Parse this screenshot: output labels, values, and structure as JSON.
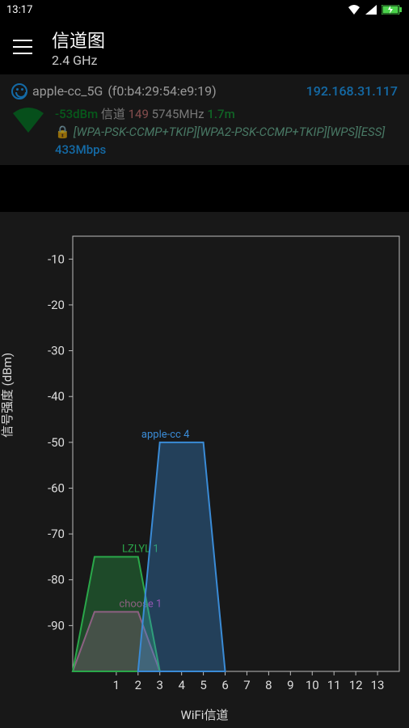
{
  "status": {
    "time": "13:17"
  },
  "appbar": {
    "title": "信道图",
    "subtitle": "2.4 GHz"
  },
  "info": {
    "ssid": "apple-cc_5G",
    "mac": "(f0:b4:29:54:e9:19)",
    "ip": "192.168.31.117",
    "signal": "-53dBm",
    "channel_label": "信道",
    "channel": "149",
    "freq": "5745MHz",
    "distance": "1.7m",
    "security": "[WPA-PSK-CCMP+TKIP][WPA2-PSK-CCMP+TKIP][WPS][ESS]",
    "rate": "433Mbps"
  },
  "chart": {
    "y_title": "信号强度 (dBm)",
    "x_title": "WiFi信道",
    "y_ticks": [
      -10,
      -20,
      -30,
      -40,
      -50,
      -60,
      -70,
      -80,
      -90
    ],
    "x_ticks": [
      1,
      2,
      3,
      4,
      5,
      6,
      7,
      8,
      9,
      10,
      11,
      12,
      13
    ],
    "ylim": [
      -100,
      -5
    ],
    "xlim": [
      -1,
      14
    ],
    "series": [
      {
        "label": "apple-cc 4",
        "color": "#3a8bd6",
        "peak_dbm": -50,
        "center_ch": 4,
        "half_width": 2,
        "label_dx": -20
      },
      {
        "label": "LZLYL 1",
        "color": "#2aa84a",
        "peak_dbm": -75,
        "center_ch": 1,
        "half_width": 2,
        "label_dx": 30
      },
      {
        "label": "choose 1",
        "color": "#c23aa0",
        "peak_dbm": -87,
        "center_ch": 1,
        "half_width": 2,
        "label_dx": 30
      }
    ]
  }
}
